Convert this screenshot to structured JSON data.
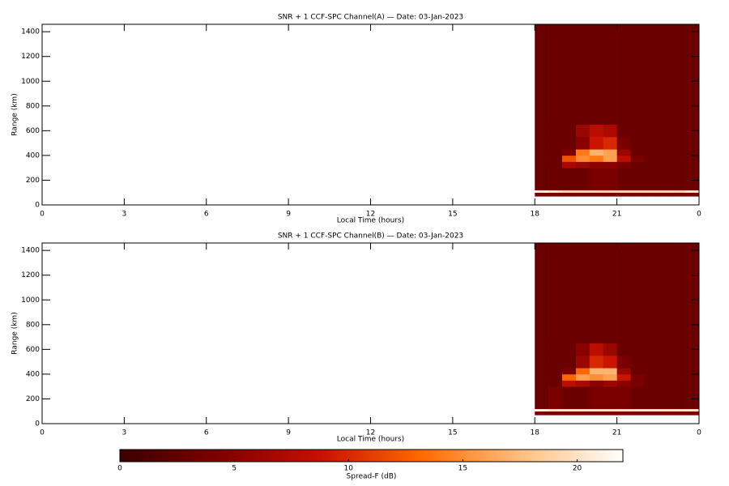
{
  "chart_data": [
    {
      "type": "heatmap",
      "title": "SNR + 1 CCF-SPC Channel(A) — Date: 03-Jan-2023",
      "xlabel": "Local Time (hours)",
      "ylabel": "Range (km)",
      "xlim": [
        0,
        24
      ],
      "xticks": [
        0,
        3,
        6,
        9,
        12,
        15,
        18,
        21,
        {
          "value": 24,
          "label": "0"
        }
      ],
      "ylim": [
        0,
        1460
      ],
      "yticks": [
        0,
        200,
        400,
        600,
        800,
        1000,
        1200,
        1400
      ],
      "x_bins": [
        18,
        18.5,
        19,
        19.5,
        20,
        20.5,
        21,
        21.5,
        22,
        22.5,
        23,
        23.5,
        24
      ],
      "y_bins": [
        70,
        100,
        120,
        300,
        350,
        400,
        450,
        550,
        650,
        1460
      ],
      "z": [
        [
          4,
          4,
          4,
          4,
          4,
          4,
          4,
          4,
          4,
          4,
          4,
          4
        ],
        [
          21,
          20,
          19,
          19,
          19,
          19,
          19,
          19,
          19,
          19,
          19,
          20
        ],
        [
          3,
          3,
          3,
          3,
          4,
          4,
          3,
          3,
          3,
          3,
          3,
          3
        ],
        [
          3,
          3,
          7,
          6,
          5,
          5,
          4,
          3,
          3,
          3,
          3,
          3
        ],
        [
          3,
          3,
          12,
          15,
          14,
          16,
          8,
          4,
          3,
          3,
          3,
          3
        ],
        [
          3,
          3,
          4,
          14,
          17,
          16,
          6,
          3,
          3,
          3,
          3,
          3
        ],
        [
          3,
          3,
          3,
          5,
          9,
          10,
          4,
          3,
          3,
          3,
          3,
          3
        ],
        [
          3,
          3,
          3,
          6,
          8,
          7,
          3,
          3,
          3,
          3,
          3,
          3
        ],
        [
          3,
          3,
          3,
          3,
          3,
          3,
          3,
          3,
          3,
          3,
          3,
          3
        ]
      ]
    },
    {
      "type": "heatmap",
      "title": "SNR + 1 CCF-SPC Channel(B) — Date: 03-Jan-2023",
      "xlabel": "Local Time (hours)",
      "ylabel": "Range (km)",
      "xlim": [
        0,
        24
      ],
      "xticks": [
        0,
        3,
        6,
        9,
        12,
        15,
        18,
        21,
        {
          "value": 24,
          "label": "0"
        }
      ],
      "ylim": [
        0,
        1460
      ],
      "yticks": [
        0,
        200,
        400,
        600,
        800,
        1000,
        1200,
        1400
      ],
      "x_bins": [
        18,
        18.5,
        19,
        19.5,
        20,
        20.5,
        21,
        21.5,
        22,
        22.5,
        23,
        23.5,
        24
      ],
      "y_bins": [
        70,
        100,
        120,
        300,
        350,
        400,
        450,
        550,
        650,
        1460
      ],
      "z": [
        [
          4,
          4,
          4,
          4,
          4,
          4,
          4,
          4,
          4,
          4,
          4,
          4
        ],
        [
          21,
          20,
          20,
          20,
          20,
          20,
          20,
          20,
          20,
          20,
          20,
          20
        ],
        [
          3,
          4,
          3,
          3,
          4,
          4,
          4,
          3,
          3,
          3,
          3,
          3
        ],
        [
          3,
          3,
          8,
          7,
          5,
          6,
          5,
          4,
          3,
          3,
          3,
          3
        ],
        [
          3,
          3,
          13,
          16,
          15,
          16,
          9,
          4,
          3,
          3,
          3,
          3
        ],
        [
          3,
          3,
          4,
          13,
          17,
          17,
          6,
          3,
          3,
          3,
          3,
          3
        ],
        [
          3,
          3,
          3,
          6,
          10,
          9,
          4,
          3,
          3,
          3,
          3,
          3
        ],
        [
          3,
          3,
          3,
          5,
          8,
          6,
          3,
          3,
          3,
          3,
          3,
          3
        ],
        [
          3,
          3,
          3,
          3,
          3,
          3,
          3,
          3,
          3,
          3,
          3,
          3
        ]
      ]
    },
    {
      "type": "colorbar",
      "label": "Spread-F (dB)",
      "clim": [
        0,
        22
      ],
      "cticks": [
        0,
        5,
        10,
        15,
        20
      ],
      "colormap": [
        "#3a0000",
        "#800000",
        "#c81000",
        "#ff6a00",
        "#ffc080",
        "#ffffff"
      ]
    }
  ]
}
